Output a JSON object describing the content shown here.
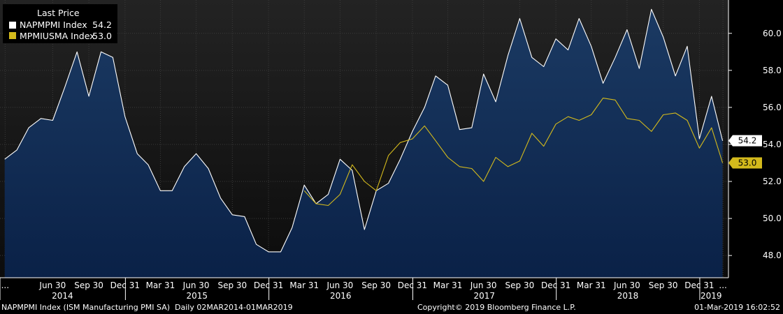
{
  "colors": {
    "background": "#000000",
    "plot_top": "#232323",
    "plot_bottom": "#0c0c0c",
    "area_top": "#1b3a63",
    "area_bottom": "#0a2147",
    "series1_line": "#ffffff",
    "series2_line": "#d4ba1c",
    "grid": "#3a3a3a",
    "axis_text": "#ffffff"
  },
  "chart_data": {
    "type": "area",
    "legend": {
      "title": "Last Price",
      "position": "top-left"
    },
    "series": [
      {
        "name": "NAPMPMI Index",
        "last_value": "54.2",
        "values": [
          {
            "date": "2014-02-28",
            "y": 53.2
          },
          {
            "date": "2014-03-31",
            "y": 53.7
          },
          {
            "date": "2014-04-30",
            "y": 54.9
          },
          {
            "date": "2014-05-31",
            "y": 55.4
          },
          {
            "date": "2014-06-30",
            "y": 55.3
          },
          {
            "date": "2014-07-31",
            "y": 57.1
          },
          {
            "date": "2014-08-31",
            "y": 59.0
          },
          {
            "date": "2014-09-30",
            "y": 56.6
          },
          {
            "date": "2014-10-31",
            "y": 59.0
          },
          {
            "date": "2014-11-30",
            "y": 58.7
          },
          {
            "date": "2014-12-31",
            "y": 55.5
          },
          {
            "date": "2015-01-31",
            "y": 53.5
          },
          {
            "date": "2015-02-28",
            "y": 52.9
          },
          {
            "date": "2015-03-31",
            "y": 51.5
          },
          {
            "date": "2015-04-30",
            "y": 51.5
          },
          {
            "date": "2015-05-31",
            "y": 52.8
          },
          {
            "date": "2015-06-30",
            "y": 53.5
          },
          {
            "date": "2015-07-31",
            "y": 52.7
          },
          {
            "date": "2015-08-31",
            "y": 51.1
          },
          {
            "date": "2015-09-30",
            "y": 50.2
          },
          {
            "date": "2015-10-31",
            "y": 50.1
          },
          {
            "date": "2015-11-30",
            "y": 48.6
          },
          {
            "date": "2015-12-31",
            "y": 48.2
          },
          {
            "date": "2016-01-31",
            "y": 48.2
          },
          {
            "date": "2016-02-29",
            "y": 49.5
          },
          {
            "date": "2016-03-31",
            "y": 51.8
          },
          {
            "date": "2016-04-30",
            "y": 50.8
          },
          {
            "date": "2016-05-31",
            "y": 51.3
          },
          {
            "date": "2016-06-30",
            "y": 53.2
          },
          {
            "date": "2016-07-31",
            "y": 52.6
          },
          {
            "date": "2016-08-31",
            "y": 49.4
          },
          {
            "date": "2016-09-30",
            "y": 51.5
          },
          {
            "date": "2016-10-31",
            "y": 51.9
          },
          {
            "date": "2016-11-30",
            "y": 53.2
          },
          {
            "date": "2016-12-31",
            "y": 54.7
          },
          {
            "date": "2017-01-31",
            "y": 56.0
          },
          {
            "date": "2017-02-28",
            "y": 57.7
          },
          {
            "date": "2017-03-31",
            "y": 57.2
          },
          {
            "date": "2017-04-30",
            "y": 54.8
          },
          {
            "date": "2017-05-31",
            "y": 54.9
          },
          {
            "date": "2017-06-30",
            "y": 57.8
          },
          {
            "date": "2017-07-31",
            "y": 56.3
          },
          {
            "date": "2017-08-31",
            "y": 58.8
          },
          {
            "date": "2017-09-30",
            "y": 60.8
          },
          {
            "date": "2017-10-31",
            "y": 58.7
          },
          {
            "date": "2017-11-30",
            "y": 58.2
          },
          {
            "date": "2017-12-31",
            "y": 59.7
          },
          {
            "date": "2018-01-31",
            "y": 59.1
          },
          {
            "date": "2018-02-28",
            "y": 60.8
          },
          {
            "date": "2018-03-31",
            "y": 59.3
          },
          {
            "date": "2018-04-30",
            "y": 57.3
          },
          {
            "date": "2018-05-31",
            "y": 58.7
          },
          {
            "date": "2018-06-30",
            "y": 60.2
          },
          {
            "date": "2018-07-31",
            "y": 58.1
          },
          {
            "date": "2018-08-31",
            "y": 61.3
          },
          {
            "date": "2018-09-30",
            "y": 59.8
          },
          {
            "date": "2018-10-31",
            "y": 57.7
          },
          {
            "date": "2018-11-30",
            "y": 59.3
          },
          {
            "date": "2018-12-31",
            "y": 54.3
          },
          {
            "date": "2019-01-31",
            "y": 56.6
          },
          {
            "date": "2019-02-28",
            "y": 54.2
          }
        ]
      },
      {
        "name": "MPMIUSMA Index",
        "last_value": "53.0",
        "values": [
          {
            "date": "2016-03-31",
            "y": 51.5
          },
          {
            "date": "2016-04-30",
            "y": 50.8
          },
          {
            "date": "2016-05-31",
            "y": 50.7
          },
          {
            "date": "2016-06-30",
            "y": 51.3
          },
          {
            "date": "2016-07-31",
            "y": 52.9
          },
          {
            "date": "2016-08-31",
            "y": 52.0
          },
          {
            "date": "2016-09-30",
            "y": 51.5
          },
          {
            "date": "2016-10-31",
            "y": 53.4
          },
          {
            "date": "2016-11-30",
            "y": 54.1
          },
          {
            "date": "2016-12-31",
            "y": 54.3
          },
          {
            "date": "2017-01-31",
            "y": 55.0
          },
          {
            "date": "2017-02-28",
            "y": 54.2
          },
          {
            "date": "2017-03-31",
            "y": 53.3
          },
          {
            "date": "2017-04-30",
            "y": 52.8
          },
          {
            "date": "2017-05-31",
            "y": 52.7
          },
          {
            "date": "2017-06-30",
            "y": 52.0
          },
          {
            "date": "2017-07-31",
            "y": 53.3
          },
          {
            "date": "2017-08-31",
            "y": 52.8
          },
          {
            "date": "2017-09-30",
            "y": 53.1
          },
          {
            "date": "2017-10-31",
            "y": 54.6
          },
          {
            "date": "2017-11-30",
            "y": 53.9
          },
          {
            "date": "2017-12-31",
            "y": 55.1
          },
          {
            "date": "2018-01-31",
            "y": 55.5
          },
          {
            "date": "2018-02-28",
            "y": 55.3
          },
          {
            "date": "2018-03-31",
            "y": 55.6
          },
          {
            "date": "2018-04-30",
            "y": 56.5
          },
          {
            "date": "2018-05-31",
            "y": 56.4
          },
          {
            "date": "2018-06-30",
            "y": 55.4
          },
          {
            "date": "2018-07-31",
            "y": 55.3
          },
          {
            "date": "2018-08-31",
            "y": 54.7
          },
          {
            "date": "2018-09-30",
            "y": 55.6
          },
          {
            "date": "2018-10-31",
            "y": 55.7
          },
          {
            "date": "2018-11-30",
            "y": 55.3
          },
          {
            "date": "2018-12-31",
            "y": 53.8
          },
          {
            "date": "2019-01-31",
            "y": 54.9
          },
          {
            "date": "2019-02-28",
            "y": 53.0
          }
        ]
      }
    ],
    "y_axis": {
      "position": "right",
      "ylim": [
        46.8,
        61.8
      ],
      "ticks": [
        48.0,
        50.0,
        52.0,
        54.0,
        56.0,
        58.0,
        60.0
      ],
      "tick_labels": [
        "48.0",
        "50.0",
        "52.0",
        "54.0",
        "56.0",
        "58.0",
        "60.0"
      ]
    },
    "x_axis": {
      "xlim": [
        "2014-02-16",
        "2019-03-15"
      ],
      "ticks": [
        {
          "label": "...",
          "date": "2014-03-01"
        },
        {
          "label": "Jun 30",
          "date": "2014-06-30"
        },
        {
          "label": "Sep 30",
          "date": "2014-09-30"
        },
        {
          "label": "Dec 31",
          "date": "2014-12-31"
        },
        {
          "label": "Mar 31",
          "date": "2015-03-31"
        },
        {
          "label": "Jun 30",
          "date": "2015-06-30"
        },
        {
          "label": "Sep 30",
          "date": "2015-09-30"
        },
        {
          "label": "Dec 31",
          "date": "2015-12-31"
        },
        {
          "label": "Mar 31",
          "date": "2016-03-31"
        },
        {
          "label": "Jun 30",
          "date": "2016-06-30"
        },
        {
          "label": "Sep 30",
          "date": "2016-09-30"
        },
        {
          "label": "Dec 31",
          "date": "2016-12-31"
        },
        {
          "label": "Mar 31",
          "date": "2017-03-31"
        },
        {
          "label": "Jun 30",
          "date": "2017-06-30"
        },
        {
          "label": "Sep 30",
          "date": "2017-09-30"
        },
        {
          "label": "Dec 31",
          "date": "2017-12-31"
        },
        {
          "label": "Mar 31",
          "date": "2018-03-31"
        },
        {
          "label": "Jun 30",
          "date": "2018-06-30"
        },
        {
          "label": "Sep 30",
          "date": "2018-09-30"
        },
        {
          "label": "Dec 31",
          "date": "2018-12-31"
        },
        {
          "label": "...",
          "date": "2019-03-01"
        }
      ],
      "years": [
        {
          "label": "2014",
          "start": "2014-01-01",
          "end": "2014-12-31"
        },
        {
          "label": "2015",
          "start": "2015-01-01",
          "end": "2015-12-31"
        },
        {
          "label": "2016",
          "start": "2016-01-01",
          "end": "2016-12-31"
        },
        {
          "label": "2017",
          "start": "2017-01-01",
          "end": "2017-12-31"
        },
        {
          "label": "2018",
          "start": "2018-01-01",
          "end": "2018-12-31"
        },
        {
          "label": "2019",
          "start": "2019-01-01",
          "end": "2019-02-28"
        }
      ]
    },
    "grid": true
  },
  "footer": {
    "left": "NAPMPMI Index (ISM Manufacturing PMI SA)  Daily 02MAR2014-01MAR2019",
    "center": "Copyright© 2019 Bloomberg Finance L.P.",
    "right": "01-Mar-2019 16:02:52"
  }
}
